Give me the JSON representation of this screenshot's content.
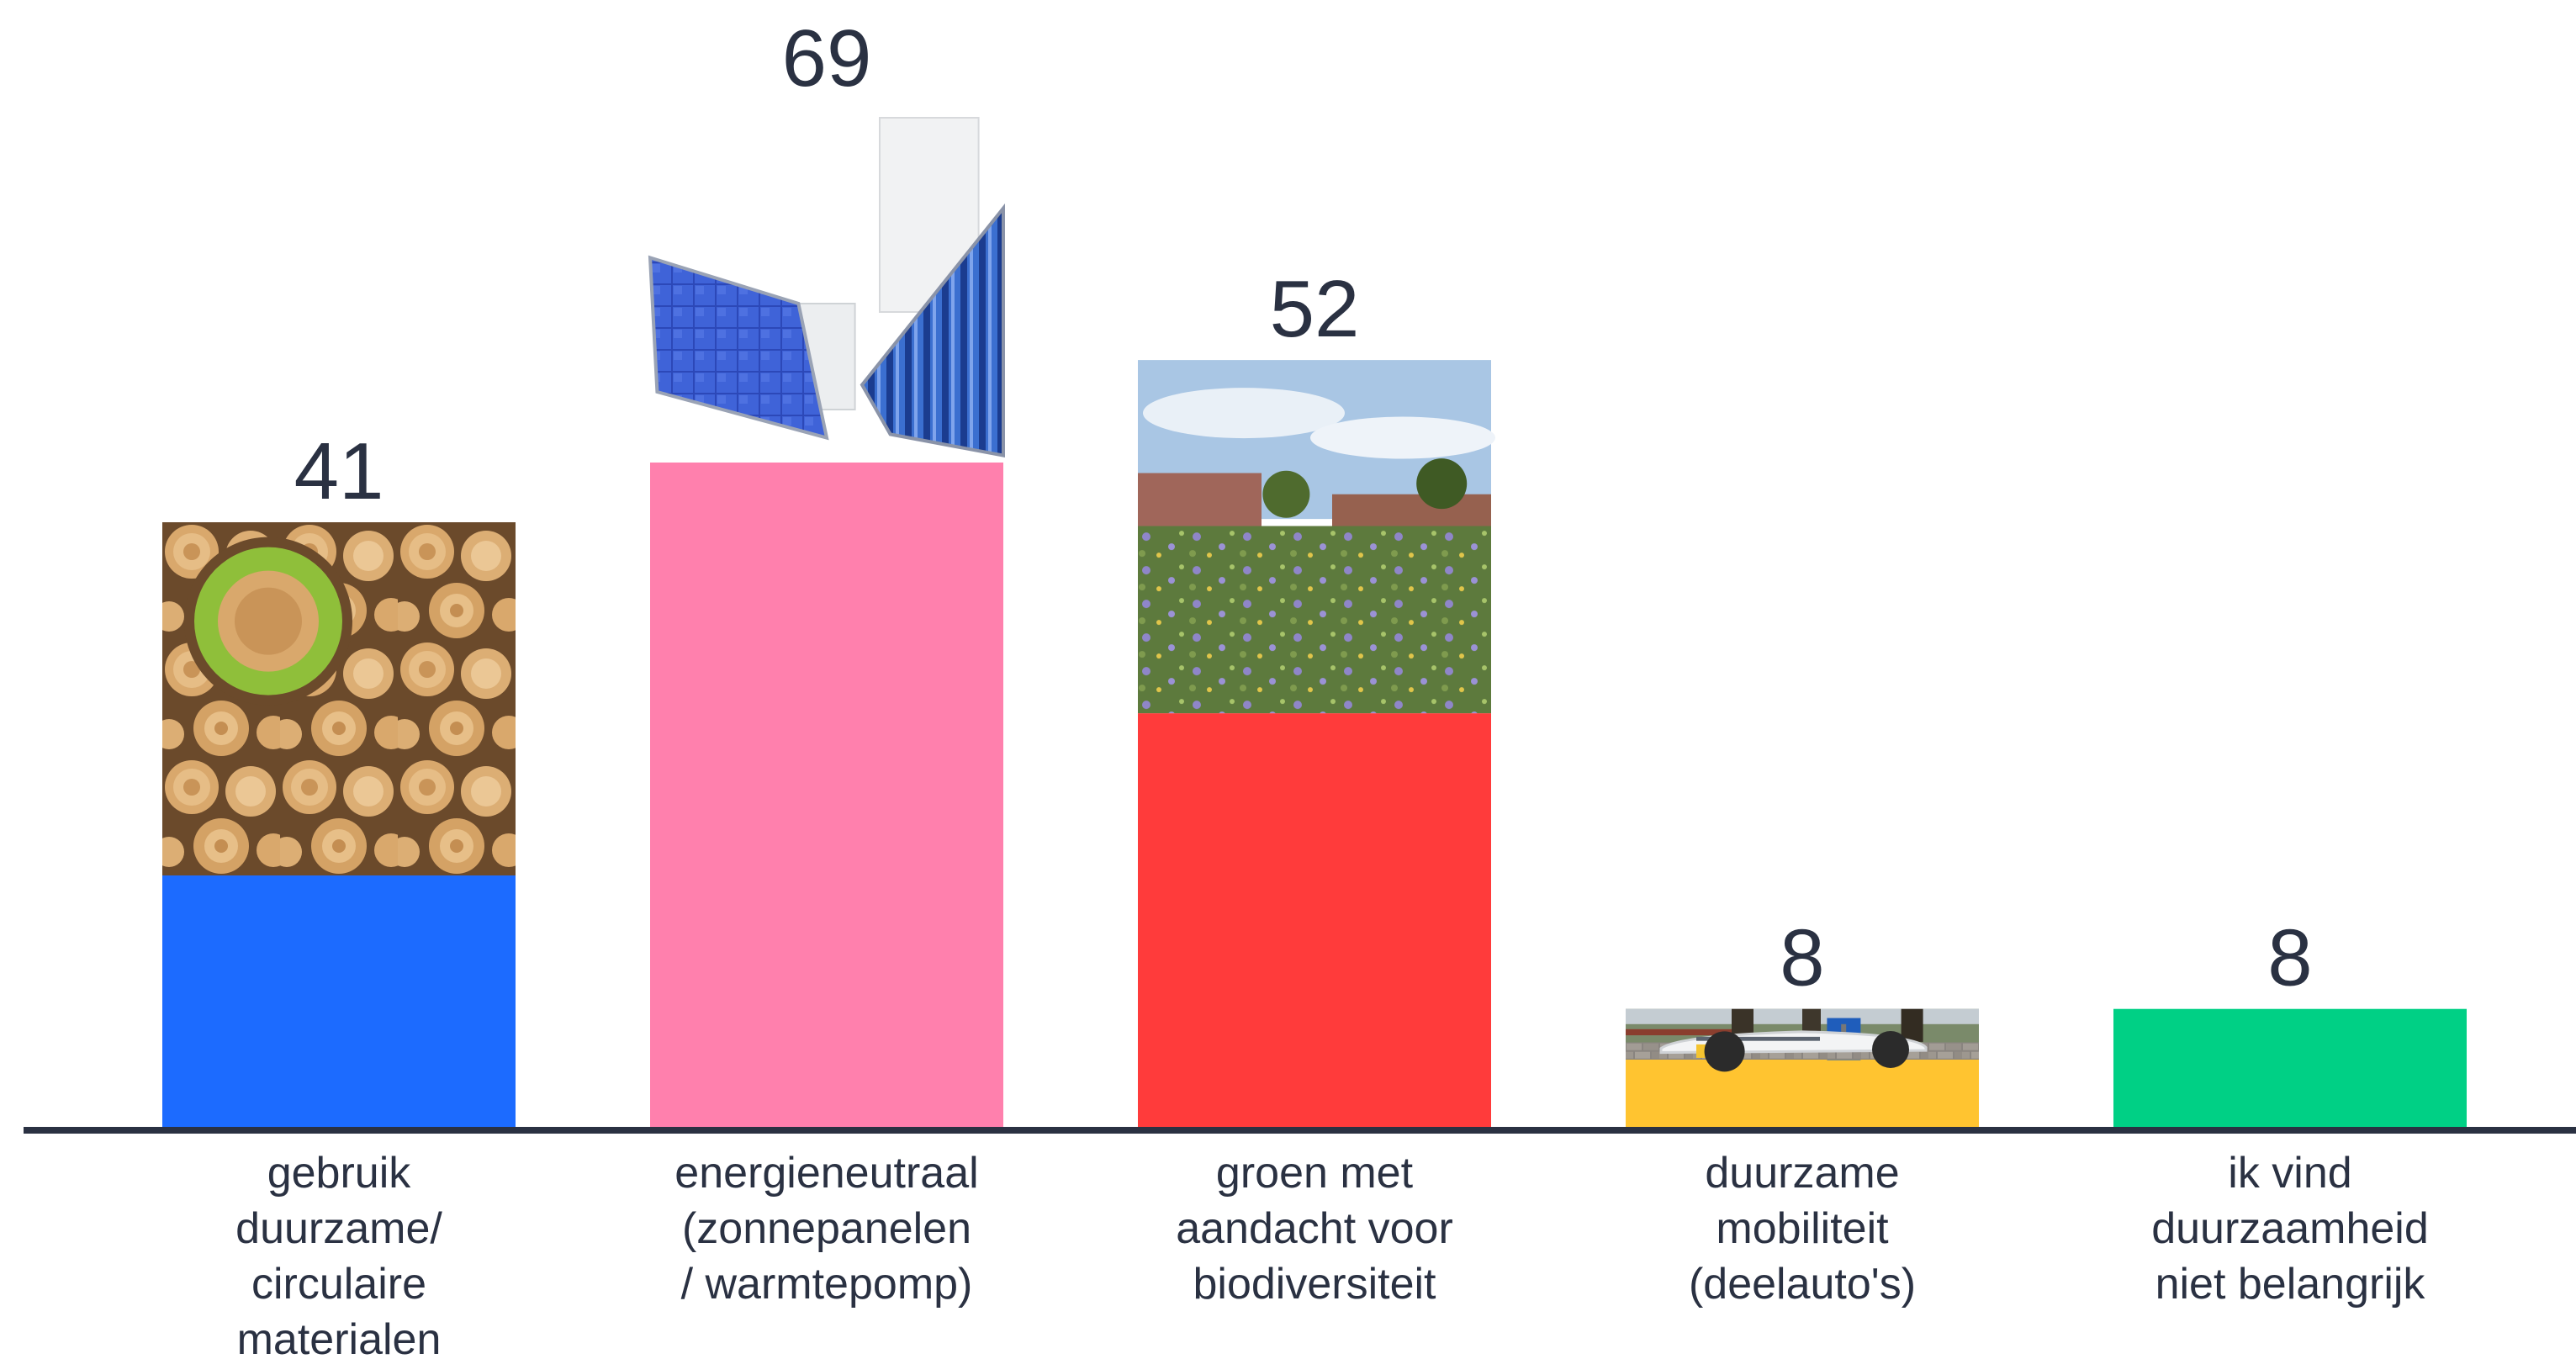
{
  "chart_data": {
    "type": "bar",
    "title": "",
    "xlabel": "",
    "ylabel": "",
    "ylim": [
      0,
      69
    ],
    "grid": false,
    "legend": "none",
    "categories": [
      [
        "gebruik",
        "duurzame/",
        "circulaire",
        "materialen"
      ],
      [
        "energieneutraal",
        "(zonnepanelen",
        "/ warmtepomp)"
      ],
      [
        "groen met",
        "aandacht voor",
        "biodiversiteit"
      ],
      [
        "duurzame",
        "mobiliteit",
        "(deelauto's)"
      ],
      [
        "ik vind",
        "duurzaamheid",
        "niet belangrijk"
      ]
    ],
    "values": [
      41,
      69,
      52,
      8,
      8
    ],
    "value_labels": [
      "41",
      "69",
      "52",
      "8",
      "8"
    ],
    "colors": [
      "#1c6bff",
      "#ff80ad",
      "#ff3b3b",
      "#ffc430",
      "#00d085"
    ],
    "images": [
      "wood-logs-recycle-image",
      "solar-panel-heat-pump-image",
      "green-biodiversity-neighborhood-image",
      "electric-shared-car-image",
      null
    ]
  }
}
